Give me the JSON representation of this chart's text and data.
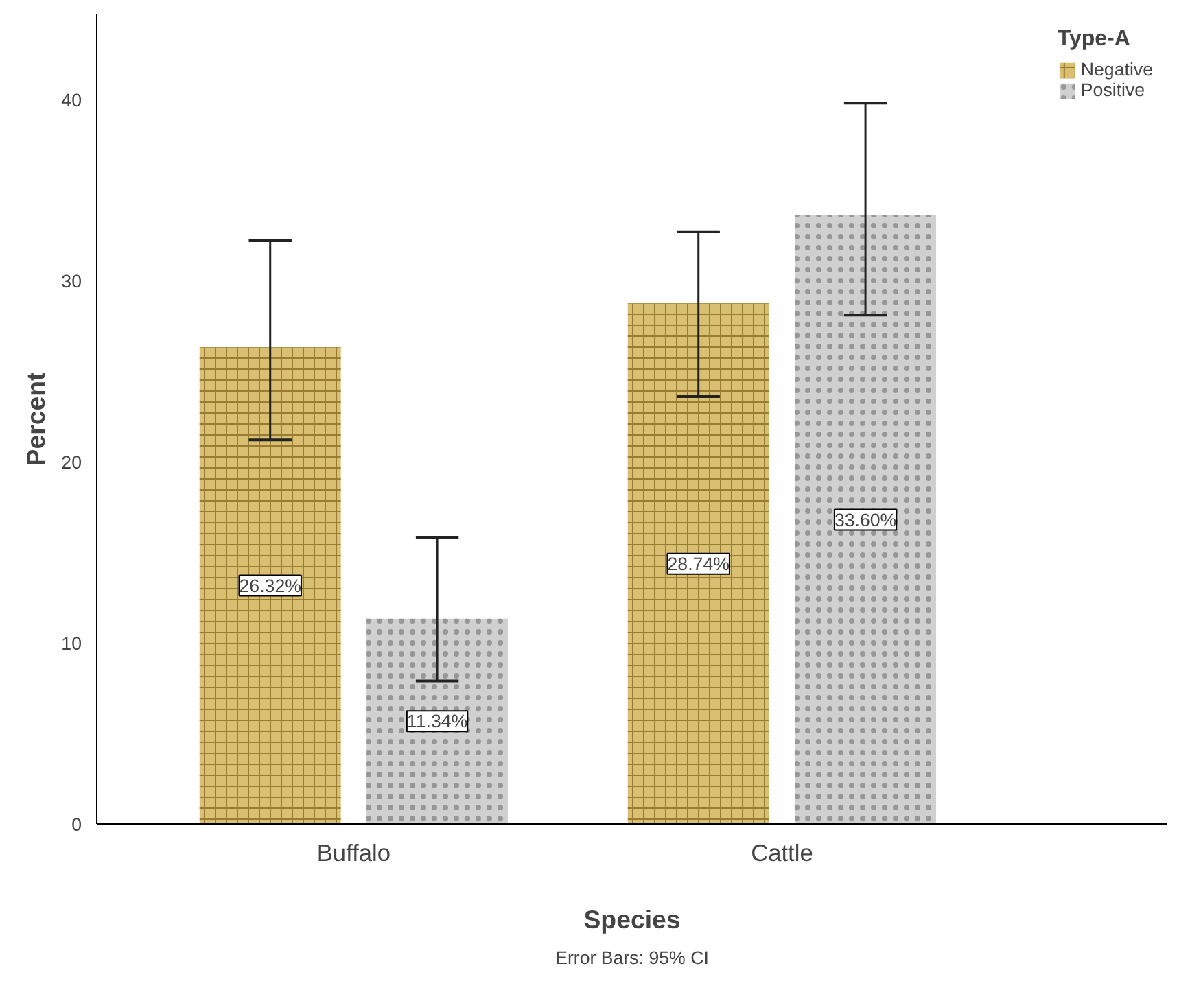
{
  "chart_data": {
    "type": "bar",
    "xlabel": "Species",
    "ylabel": "Percent",
    "legend_title": "Type-A",
    "categories": [
      "Buffalo",
      "Cattle"
    ],
    "series": [
      {
        "name": "Negative",
        "color": "#d9bf72",
        "values": [
          26.32,
          28.74
        ],
        "errors": [
          [
            21.2,
            32.2
          ],
          [
            23.6,
            32.7
          ]
        ],
        "value_labels": [
          "26.32%",
          "28.74%"
        ]
      },
      {
        "name": "Positive",
        "color": "#d0d0d0",
        "values": [
          11.34,
          33.6
        ],
        "errors": [
          [
            7.9,
            15.8
          ],
          [
            28.1,
            39.8
          ]
        ],
        "value_labels": [
          "11.34%",
          "33.60%"
        ]
      }
    ],
    "ylim": [
      0,
      44.7
    ],
    "yticks": [
      0,
      10,
      20,
      30,
      40
    ],
    "grid": false,
    "legend": "top right",
    "annotations": [
      "Error Bars: 95% CI"
    ]
  }
}
